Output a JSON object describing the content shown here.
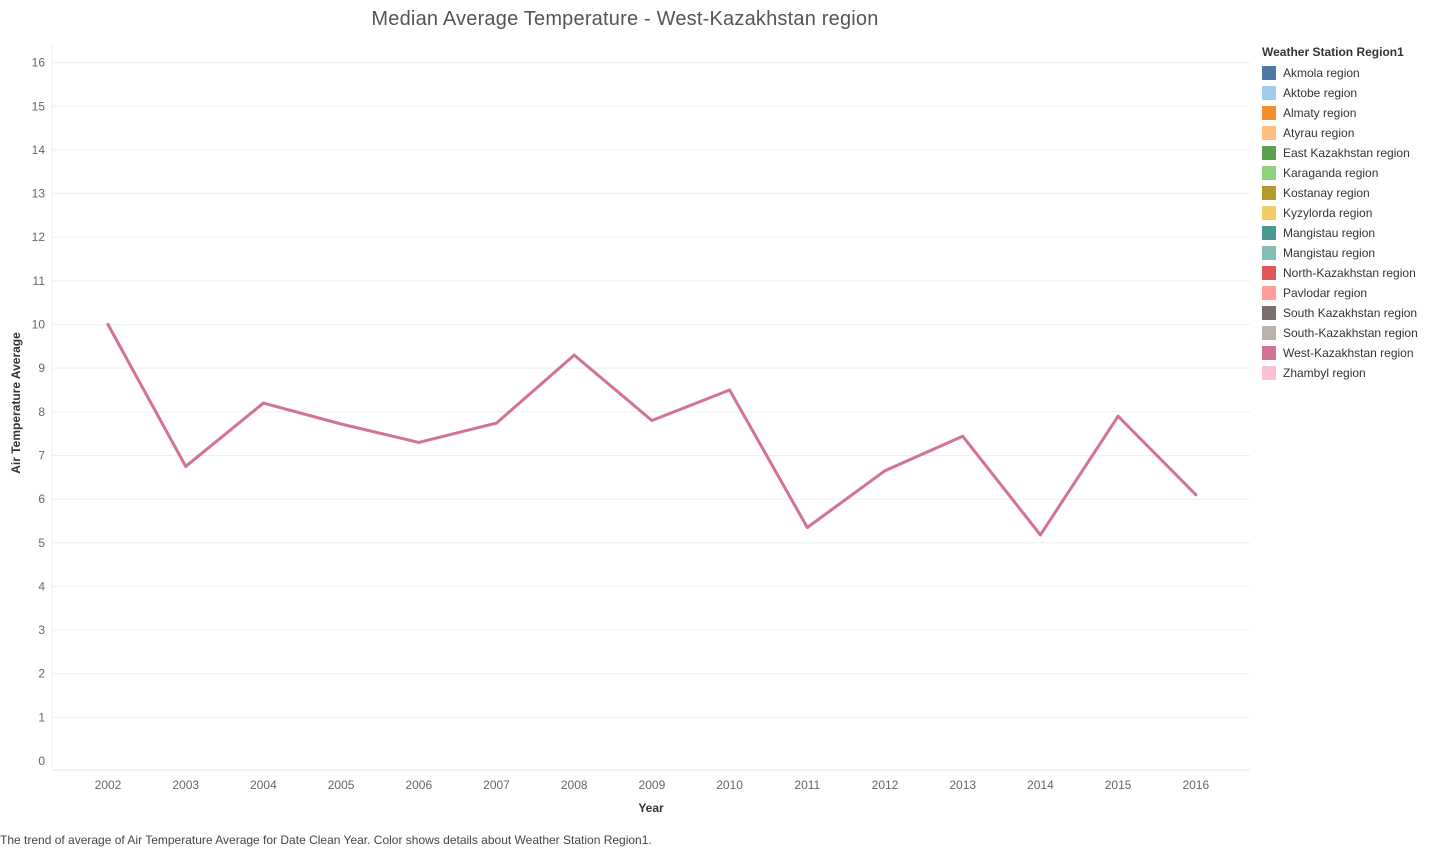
{
  "chart_data": {
    "type": "line",
    "title": "Median Average Temperature  - West-Kazakhstan region",
    "xlabel": "Year",
    "ylabel": "Air Temperature Average",
    "x": [
      "2002",
      "2003",
      "2004",
      "2005",
      "2006",
      "2007",
      "2008",
      "2009",
      "2010",
      "2011",
      "2012",
      "2013",
      "2014",
      "2015",
      "2016"
    ],
    "yticks": [
      "0",
      "1",
      "2",
      "3",
      "4",
      "5",
      "6",
      "7",
      "8",
      "9",
      "10",
      "11",
      "12",
      "13",
      "14",
      "15",
      "16"
    ],
    "ylim": [
      0,
      16
    ],
    "grid": true,
    "series": [
      {
        "name": "West-Kazakhstan region",
        "color": "#D37295",
        "values": [
          10.0,
          6.75,
          8.2,
          7.72,
          7.3,
          7.74,
          9.3,
          7.8,
          8.5,
          5.35,
          6.65,
          7.44,
          5.18,
          7.9,
          6.1
        ]
      }
    ],
    "legend": {
      "title": "Weather Station Region1",
      "position": "right",
      "items": [
        {
          "label": "Akmola region",
          "color": "#4E79A7"
        },
        {
          "label": "Aktobe region",
          "color": "#A0CBE8"
        },
        {
          "label": "Almaty region",
          "color": "#F28E2B"
        },
        {
          "label": "Atyrau region",
          "color": "#FFBE7D"
        },
        {
          "label": "East Kazakhstan region",
          "color": "#59A14F"
        },
        {
          "label": "Karaganda region",
          "color": "#8CD17D"
        },
        {
          "label": "Kostanay region",
          "color": "#B6992D"
        },
        {
          "label": "Kyzylorda region",
          "color": "#F1CE63"
        },
        {
          "label": "Mangistau  region",
          "color": "#499894"
        },
        {
          "label": "Mangistau region",
          "color": "#86BCB6"
        },
        {
          "label": "North-Kazakhstan region",
          "color": "#E15759"
        },
        {
          "label": "Pavlodar region",
          "color": "#FF9D9A"
        },
        {
          "label": "South Kazakhstan region",
          "color": "#79706E"
        },
        {
          "label": "South-Kazakhstan region",
          "color": "#BAB0AC"
        },
        {
          "label": "West-Kazakhstan region",
          "color": "#D37295"
        },
        {
          "label": "Zhambyl region",
          "color": "#FABFD2"
        }
      ]
    }
  },
  "caption": "The trend of average of Air Temperature Average for Date Clean Year.  Color shows details about Weather Station Region1."
}
